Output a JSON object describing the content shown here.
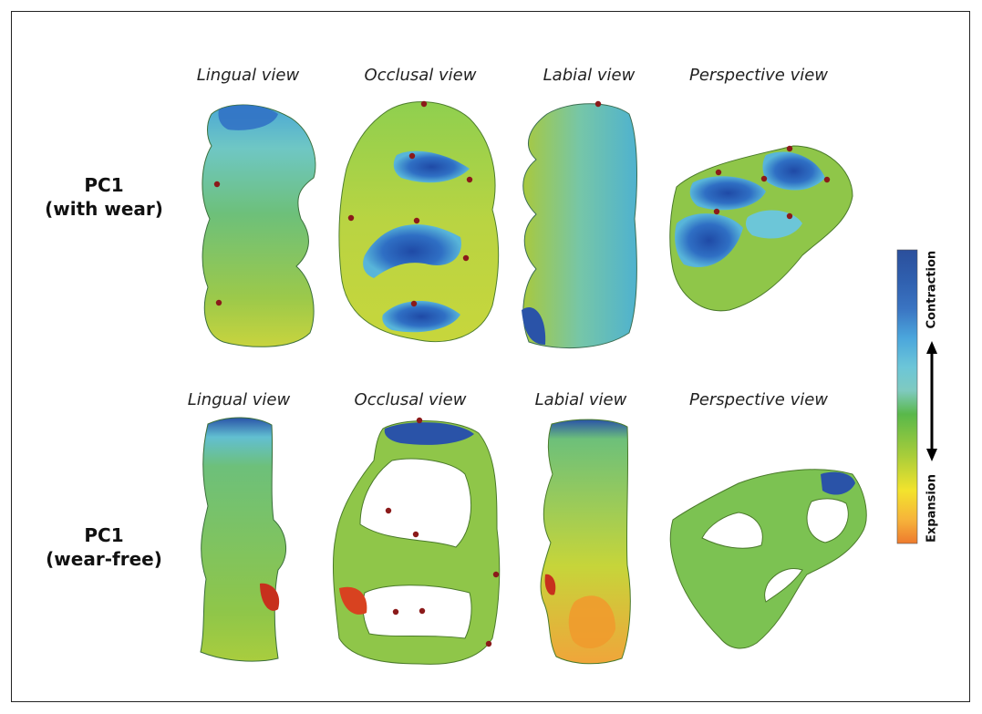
{
  "row_labels": [
    {
      "line1": "PC1",
      "line2": "(with wear)"
    },
    {
      "line1": "PC1",
      "line2": "(wear-free)"
    }
  ],
  "view_labels": {
    "row1": [
      "Lingual view",
      "Occlusal view",
      "Labial view",
      "Perspective view"
    ],
    "row2": [
      "Lingual view",
      "Occlusal view",
      "Labial view",
      "Perspective view"
    ]
  },
  "color_scale": {
    "top_label": "Contraction",
    "bottom_label": "Expansion",
    "colors": [
      "#2b4f9c",
      "#2f5fae",
      "#3a74c2",
      "#4ba6dc",
      "#6cc6d8",
      "#7fcabf",
      "#6dc07a",
      "#59b84a",
      "#6fbe3e",
      "#a8cd3a",
      "#cfd83b",
      "#f3e32d",
      "#f6b33a",
      "#ee7a2e"
    ]
  },
  "palette": {
    "contraction": "#2f5fae",
    "neutral": "#6dc07a",
    "expansion": "#ee7a2e",
    "landmark": "#8b1a1a"
  }
}
